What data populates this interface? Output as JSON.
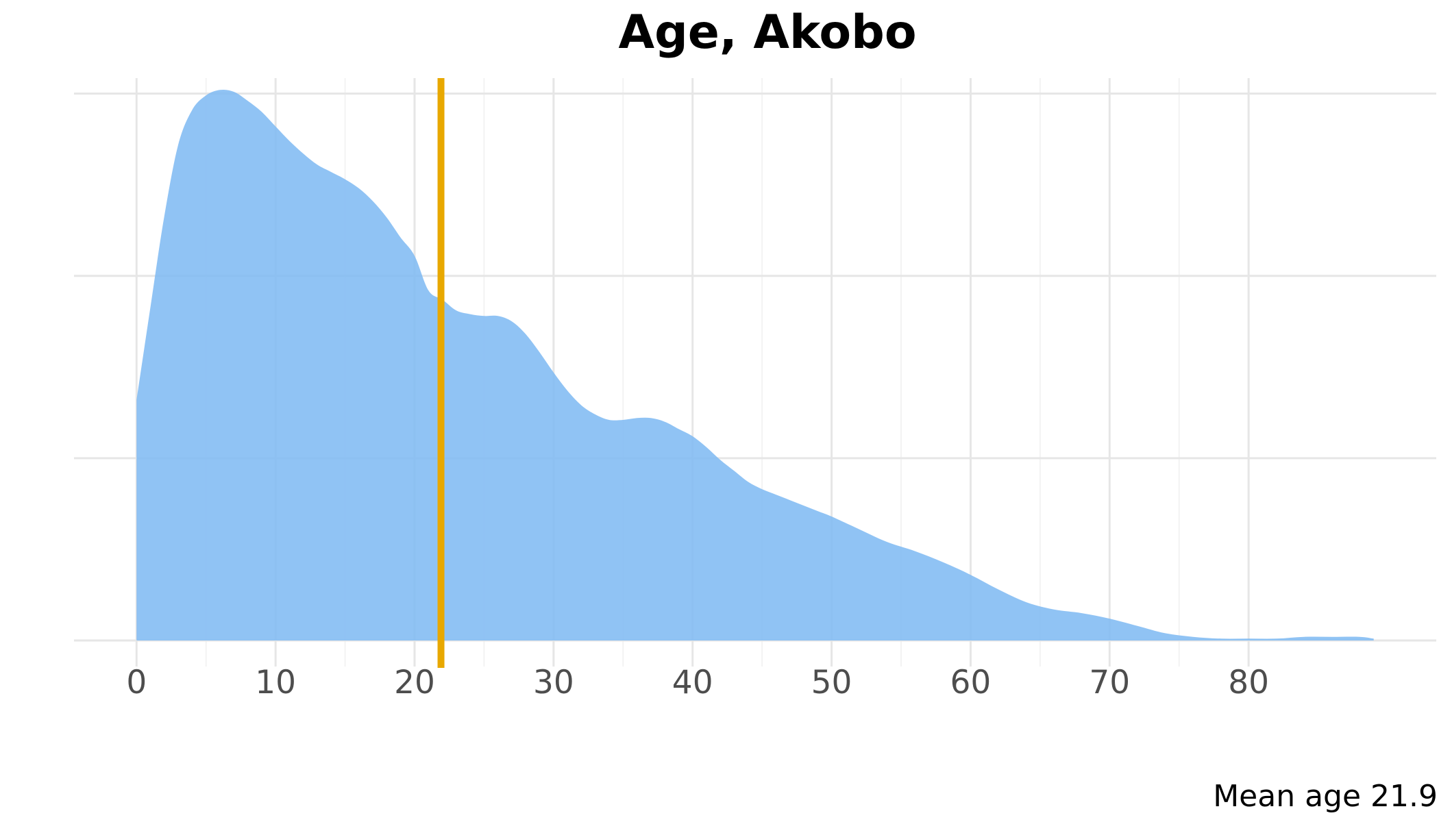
{
  "chart_data": {
    "type": "area",
    "title": "Age, Akobo",
    "xlabel": "",
    "ylabel": "",
    "caption": "Mean age 21.9",
    "xlim": [
      -4.5,
      93.5
    ],
    "ylim": [
      0,
      0.0307
    ],
    "x_ticks": [
      0,
      10,
      20,
      30,
      40,
      50,
      60,
      70,
      80
    ],
    "x_tick_labels": [
      "0",
      "10",
      "20",
      "30",
      "40",
      "50",
      "60",
      "70",
      "80"
    ],
    "y_ticks": [
      0,
      0.01,
      0.02,
      0.03
    ],
    "y_tick_labels": [
      "",
      "",
      "",
      ""
    ],
    "grid": true,
    "legend": "none",
    "mean_line": {
      "value": 21.9
    },
    "series": [
      {
        "x": [
          0,
          1,
          2,
          3,
          4,
          5,
          6,
          7,
          8,
          9,
          10,
          11,
          12,
          13,
          14,
          15,
          16,
          17,
          18,
          19,
          20,
          21,
          22,
          23,
          24,
          25,
          26,
          27,
          28,
          29,
          30,
          31,
          32,
          33,
          34,
          35,
          36,
          37,
          38,
          39,
          40,
          41,
          42,
          43,
          44,
          45,
          46,
          47,
          48,
          49,
          50,
          52,
          54,
          56,
          58,
          60,
          62,
          64,
          66,
          68,
          70,
          72,
          74,
          76,
          78,
          80,
          82,
          84,
          86,
          88,
          89
        ],
        "y": [
          0.0132,
          0.0183,
          0.0233,
          0.0272,
          0.0291,
          0.0299,
          0.0302,
          0.0301,
          0.0296,
          0.029,
          0.0282,
          0.0274,
          0.0267,
          0.0261,
          0.0257,
          0.0253,
          0.0248,
          0.0241,
          0.0232,
          0.0221,
          0.0211,
          0.0192,
          0.0187,
          0.0181,
          0.0179,
          0.0178,
          0.0178,
          0.0175,
          0.0168,
          0.0158,
          0.0147,
          0.0137,
          0.0129,
          0.0124,
          0.0121,
          0.0121,
          0.0122,
          0.0122,
          0.012,
          0.0116,
          0.0112,
          0.0106,
          0.0099,
          0.0093,
          0.0087,
          0.0083,
          0.008,
          0.0077,
          0.0074,
          0.0071,
          0.0068,
          0.0061,
          0.0054,
          0.0049,
          0.0043,
          0.0036,
          0.0028,
          0.0021,
          0.0017,
          0.0015,
          0.0012,
          0.0008,
          0.0004,
          0.0002,
          0.0001,
          0.0001,
          0.0001,
          0.0002,
          0.0002,
          0.0002,
          0.0001
        ],
        "color": "#7cb8f2"
      }
    ],
    "colors": {
      "fill": "#7cb8f2",
      "mean_line": "#e8a800",
      "grid": "#e6e6e6"
    }
  }
}
